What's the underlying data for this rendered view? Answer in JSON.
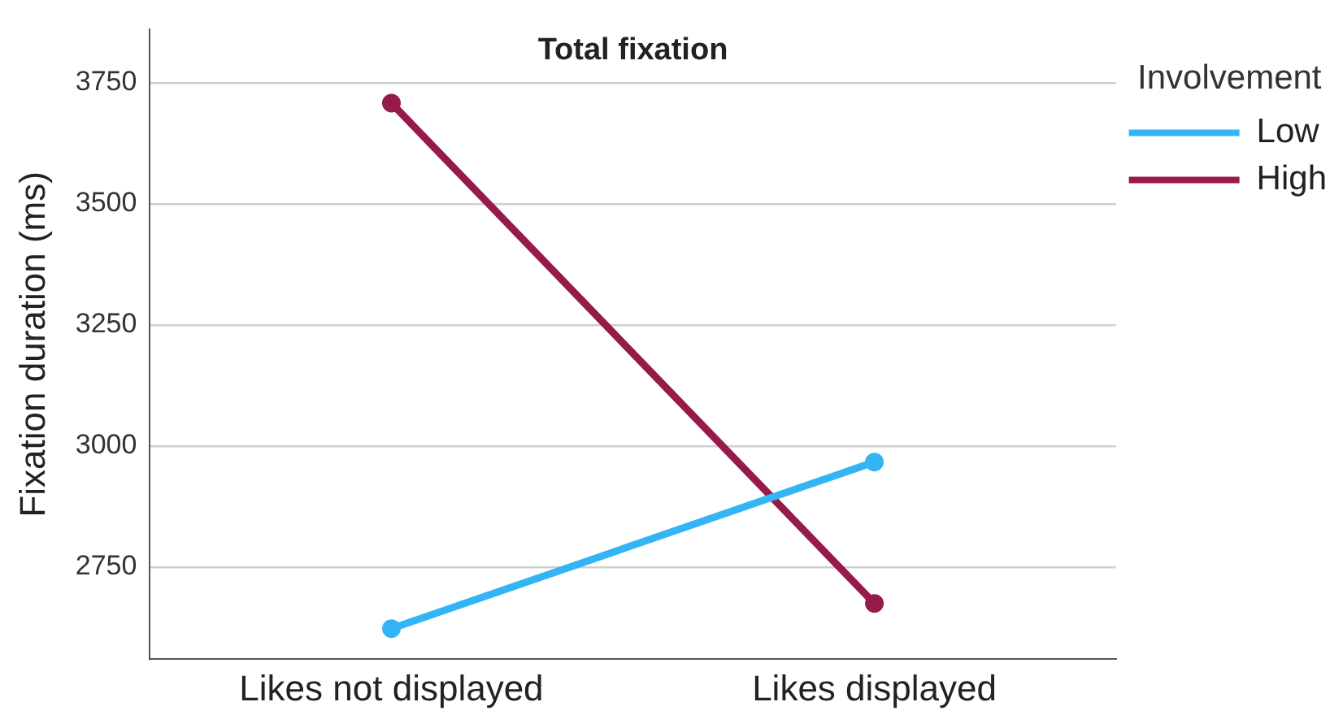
{
  "chart_data": {
    "type": "line",
    "title": "Total fixation",
    "ylabel": "Fixation duration (ms)",
    "legend_title": "Involvement",
    "categories": [
      "Likes not displayed",
      "Likes displayed"
    ],
    "series": [
      {
        "name": "Low",
        "color": "#33b5f5",
        "values": [
          2623,
          2967
        ]
      },
      {
        "name": "High",
        "color": "#961a4a",
        "values": [
          3708,
          2675
        ]
      }
    ],
    "ylim": [
      2560,
      3860
    ],
    "yticks": [
      2750,
      3000,
      3250,
      3500,
      3750
    ],
    "grid": "y",
    "legend": "top right",
    "marker": "circle",
    "line_style": "solid"
  }
}
